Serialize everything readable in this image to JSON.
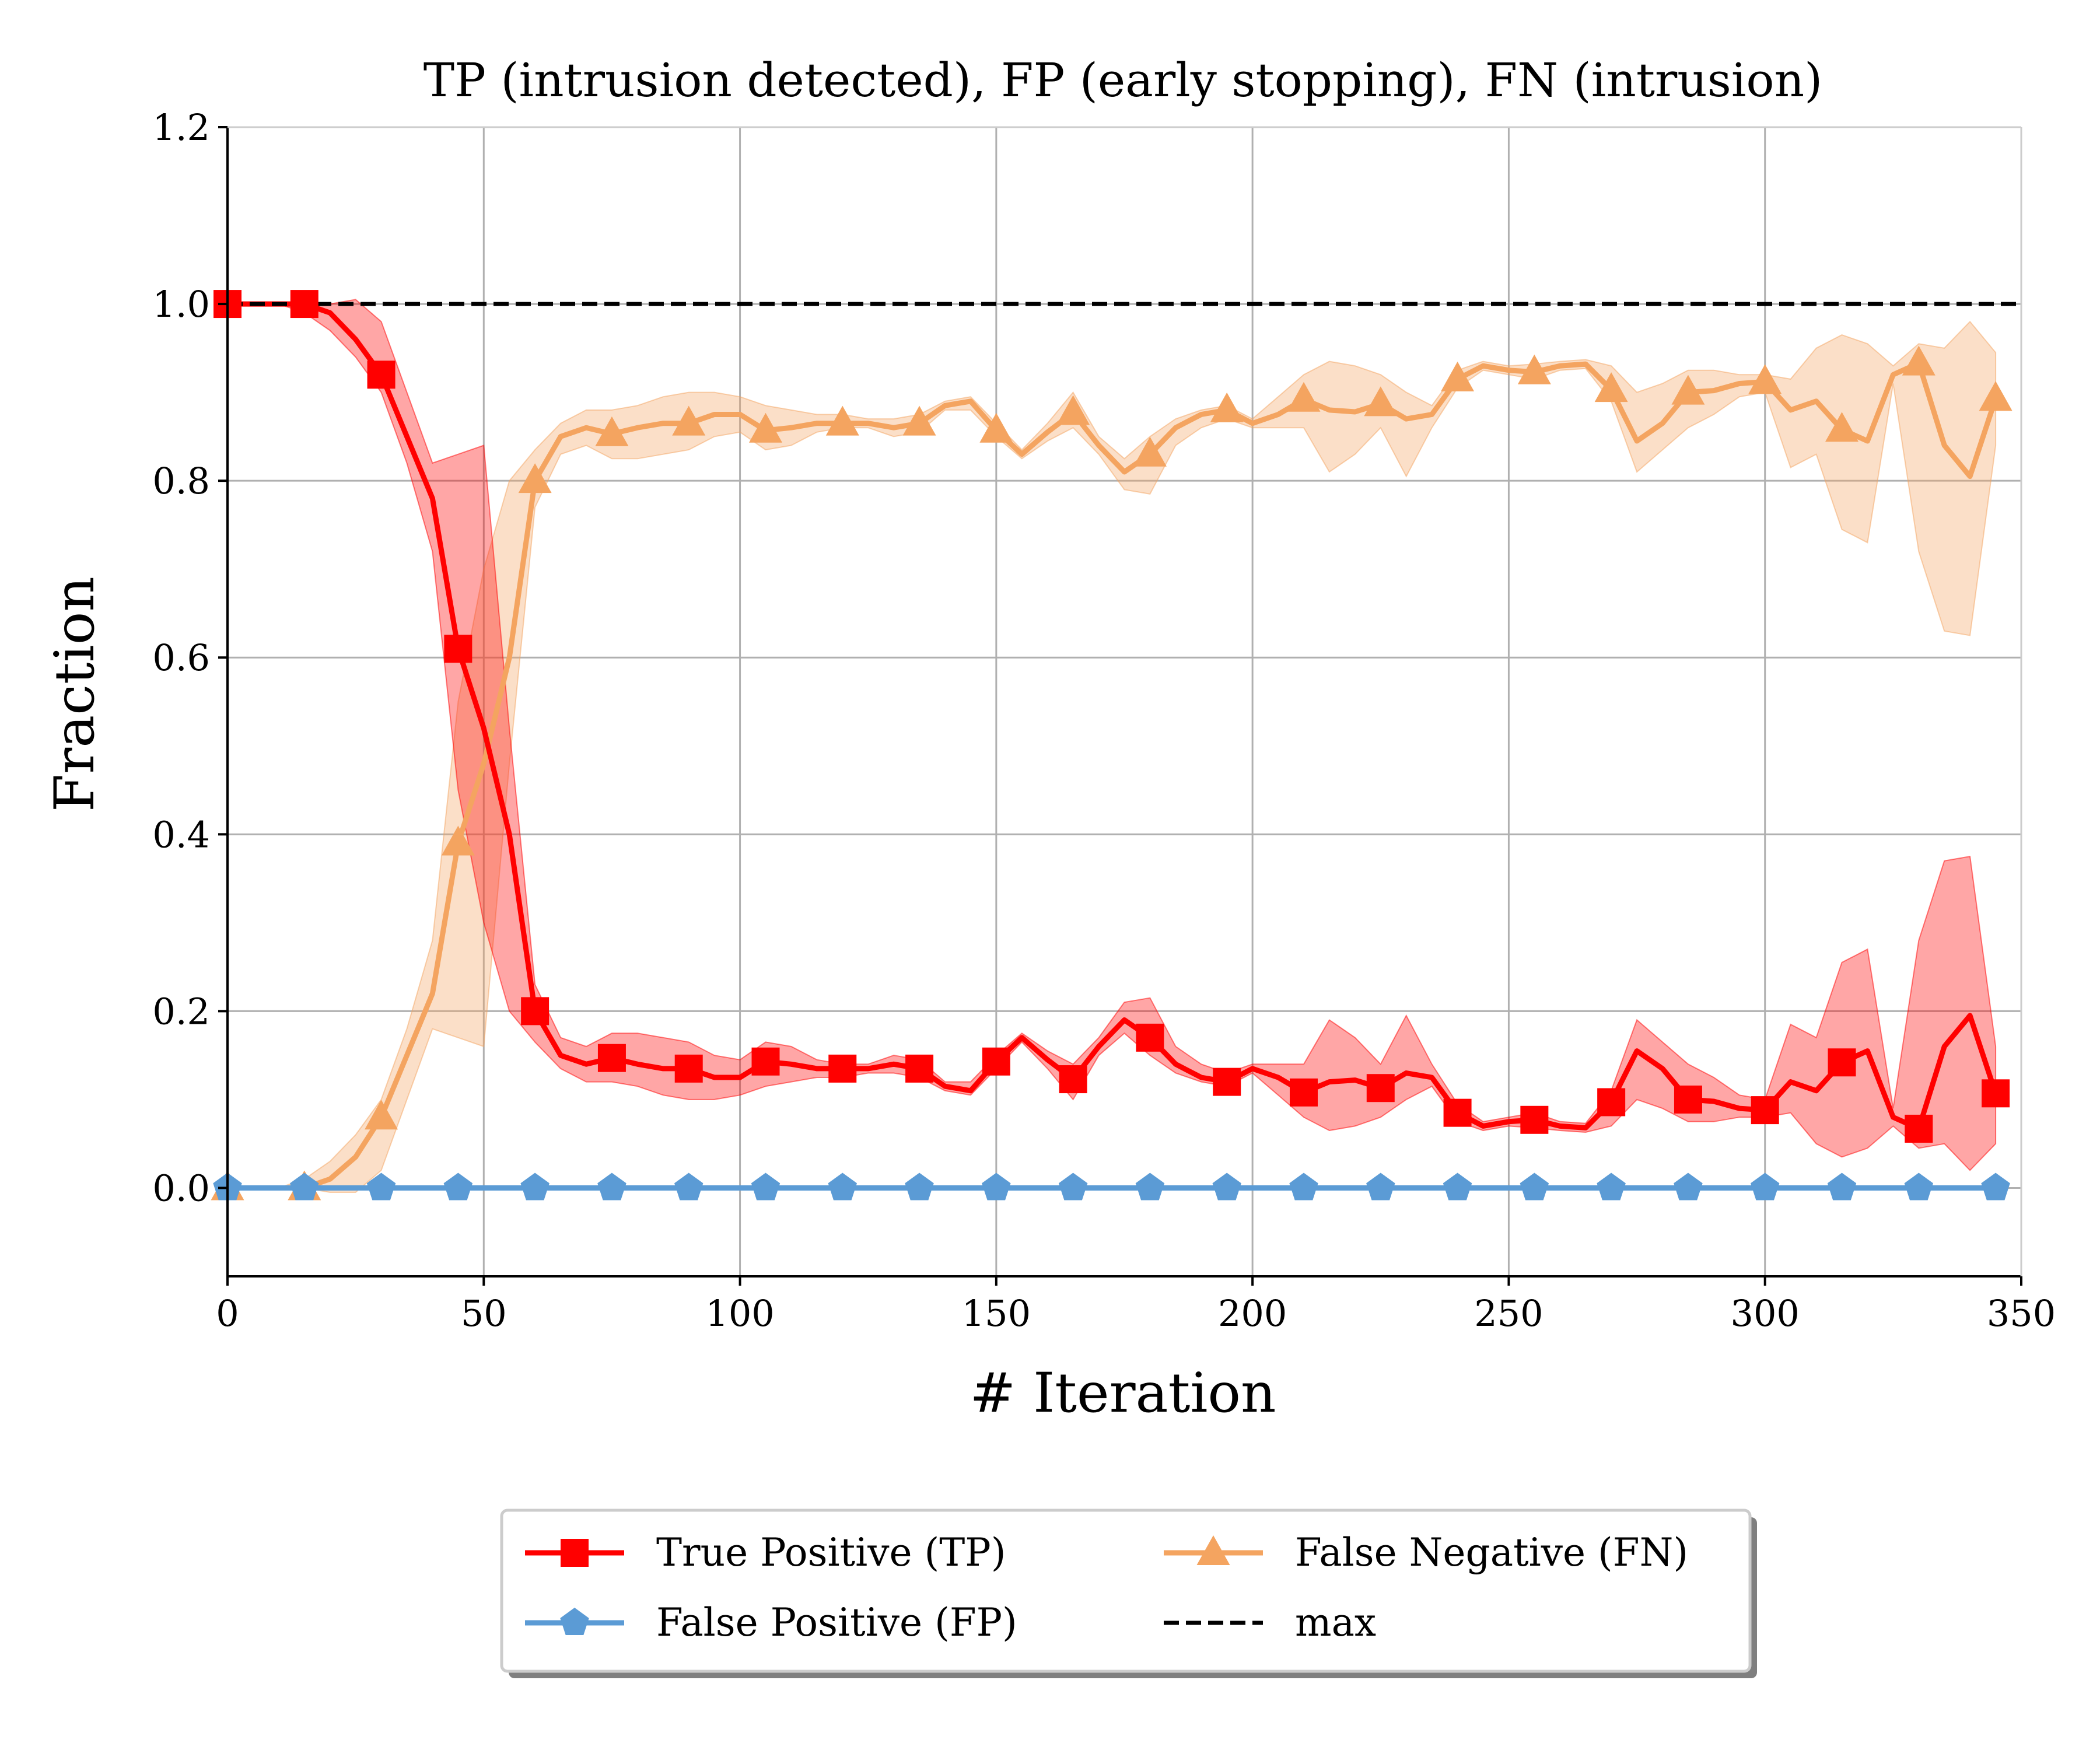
{
  "chart_data": {
    "type": "line",
    "title": "TP (intrusion detected), FP (early stopping), FN (intrusion)",
    "xlabel": "# Iteration",
    "ylabel": "Fraction",
    "xlim": [
      0,
      350
    ],
    "ylim": [
      -0.1,
      1.2
    ],
    "xticks": [
      "0",
      "50",
      "100",
      "150",
      "200",
      "250",
      "300",
      "350"
    ],
    "yticks": [
      "0.0",
      "0.2",
      "0.4",
      "0.6",
      "0.8",
      "1.0",
      "1.2"
    ],
    "grid": true,
    "legend_position": "below",
    "x": [
      0,
      5,
      10,
      15,
      20,
      25,
      30,
      35,
      40,
      45,
      50,
      55,
      60,
      65,
      70,
      75,
      80,
      85,
      90,
      95,
      100,
      105,
      110,
      115,
      120,
      125,
      130,
      135,
      140,
      145,
      150,
      155,
      160,
      165,
      170,
      175,
      180,
      185,
      190,
      195,
      200,
      205,
      210,
      215,
      220,
      225,
      230,
      235,
      240,
      245,
      250,
      255,
      260,
      265,
      270,
      275,
      280,
      285,
      290,
      295,
      300,
      305,
      310,
      315,
      320,
      325,
      330,
      335,
      340,
      345
    ],
    "marker_every": 3,
    "series": [
      {
        "name": "True Positive (TP)",
        "color": "#ff0000",
        "marker": "square",
        "values": [
          1.0,
          1.0,
          1.0,
          1.0,
          0.99,
          0.96,
          0.92,
          0.85,
          0.78,
          0.61,
          0.52,
          0.4,
          0.2,
          0.15,
          0.14,
          0.147,
          0.14,
          0.135,
          0.135,
          0.125,
          0.125,
          0.143,
          0.14,
          0.135,
          0.135,
          0.135,
          0.14,
          0.135,
          0.115,
          0.11,
          0.143,
          0.17,
          0.145,
          0.123,
          0.16,
          0.19,
          0.17,
          0.14,
          0.125,
          0.12,
          0.135,
          0.125,
          0.108,
          0.12,
          0.122,
          0.113,
          0.13,
          0.125,
          0.085,
          0.07,
          0.075,
          0.077,
          0.07,
          0.068,
          0.097,
          0.155,
          0.135,
          0.1,
          0.098,
          0.09,
          0.088,
          0.12,
          0.11,
          0.142,
          0.155,
          0.08,
          0.067,
          0.16,
          0.195,
          0.107
        ],
        "lower": [
          1.0,
          1.0,
          1.0,
          0.99,
          0.97,
          0.94,
          0.9,
          0.82,
          0.72,
          0.45,
          0.3,
          0.2,
          0.165,
          0.135,
          0.12,
          0.12,
          0.115,
          0.105,
          0.1,
          0.1,
          0.105,
          0.115,
          0.12,
          0.125,
          0.125,
          0.13,
          0.13,
          0.125,
          0.11,
          0.105,
          0.135,
          0.165,
          0.135,
          0.1,
          0.15,
          0.175,
          0.15,
          0.13,
          0.12,
          0.115,
          0.13,
          0.105,
          0.08,
          0.065,
          0.07,
          0.08,
          0.1,
          0.115,
          0.075,
          0.065,
          0.07,
          0.068,
          0.065,
          0.063,
          0.07,
          0.1,
          0.09,
          0.075,
          0.075,
          0.08,
          0.08,
          0.085,
          0.05,
          0.035,
          0.045,
          0.07,
          0.045,
          0.05,
          0.02,
          0.05
        ],
        "upper": [
          1.0,
          1.0,
          1.0,
          1.0,
          1.0,
          1.005,
          0.98,
          0.9,
          0.82,
          0.83,
          0.84,
          0.52,
          0.23,
          0.17,
          0.16,
          0.175,
          0.175,
          0.17,
          0.165,
          0.15,
          0.145,
          0.165,
          0.16,
          0.145,
          0.14,
          0.14,
          0.15,
          0.145,
          0.12,
          0.12,
          0.15,
          0.175,
          0.155,
          0.14,
          0.17,
          0.21,
          0.215,
          0.16,
          0.14,
          0.13,
          0.14,
          0.14,
          0.14,
          0.19,
          0.17,
          0.14,
          0.195,
          0.14,
          0.095,
          0.075,
          0.08,
          0.085,
          0.075,
          0.073,
          0.11,
          0.19,
          0.165,
          0.14,
          0.125,
          0.105,
          0.1,
          0.185,
          0.17,
          0.255,
          0.27,
          0.09,
          0.28,
          0.37,
          0.375,
          0.16
        ]
      },
      {
        "name": "False Positive (FP)",
        "color": "#5b9bd5",
        "marker": "pentagon",
        "values": [
          0,
          0,
          0,
          0,
          0,
          0,
          0,
          0,
          0,
          0,
          0,
          0,
          0,
          0,
          0,
          0,
          0,
          0,
          0,
          0,
          0,
          0,
          0,
          0,
          0,
          0,
          0,
          0,
          0,
          0,
          0,
          0,
          0,
          0,
          0,
          0,
          0,
          0,
          0,
          0,
          0,
          0,
          0,
          0,
          0,
          0,
          0,
          0,
          0,
          0,
          0,
          0,
          0,
          0,
          0,
          0,
          0,
          0,
          0,
          0,
          0,
          0,
          0,
          0,
          0,
          0,
          0,
          0,
          0,
          0
        ]
      },
      {
        "name": "False Negative (FN)",
        "color": "#f4a460",
        "marker": "triangle",
        "values": [
          0.0,
          0.0,
          0.0,
          0.0,
          0.01,
          0.035,
          0.08,
          0.15,
          0.22,
          0.39,
          0.48,
          0.6,
          0.8,
          0.85,
          0.86,
          0.853,
          0.86,
          0.865,
          0.865,
          0.875,
          0.875,
          0.857,
          0.86,
          0.865,
          0.865,
          0.865,
          0.86,
          0.865,
          0.885,
          0.89,
          0.857,
          0.83,
          0.855,
          0.877,
          0.84,
          0.81,
          0.83,
          0.86,
          0.875,
          0.88,
          0.865,
          0.875,
          0.892,
          0.88,
          0.878,
          0.887,
          0.87,
          0.875,
          0.915,
          0.93,
          0.925,
          0.923,
          0.93,
          0.932,
          0.903,
          0.845,
          0.865,
          0.9,
          0.902,
          0.91,
          0.912,
          0.88,
          0.89,
          0.858,
          0.845,
          0.92,
          0.933,
          0.84,
          0.805,
          0.893
        ],
        "lower": [
          0.0,
          0.0,
          0.0,
          0.0,
          -0.005,
          -0.005,
          0.02,
          0.1,
          0.18,
          0.17,
          0.16,
          0.48,
          0.77,
          0.83,
          0.84,
          0.825,
          0.825,
          0.83,
          0.835,
          0.85,
          0.855,
          0.835,
          0.84,
          0.855,
          0.86,
          0.86,
          0.85,
          0.855,
          0.88,
          0.88,
          0.85,
          0.825,
          0.845,
          0.86,
          0.83,
          0.79,
          0.785,
          0.84,
          0.86,
          0.87,
          0.86,
          0.86,
          0.86,
          0.81,
          0.83,
          0.86,
          0.805,
          0.86,
          0.905,
          0.925,
          0.92,
          0.915,
          0.925,
          0.927,
          0.89,
          0.81,
          0.835,
          0.86,
          0.875,
          0.895,
          0.9,
          0.815,
          0.83,
          0.745,
          0.73,
          0.91,
          0.72,
          0.63,
          0.625,
          0.84
        ],
        "upper": [
          0.0,
          0.0,
          0.0,
          0.01,
          0.03,
          0.06,
          0.1,
          0.18,
          0.28,
          0.55,
          0.7,
          0.8,
          0.835,
          0.865,
          0.88,
          0.88,
          0.885,
          0.895,
          0.9,
          0.9,
          0.895,
          0.885,
          0.88,
          0.875,
          0.875,
          0.87,
          0.87,
          0.875,
          0.89,
          0.895,
          0.865,
          0.835,
          0.865,
          0.9,
          0.85,
          0.825,
          0.85,
          0.87,
          0.88,
          0.885,
          0.87,
          0.895,
          0.92,
          0.935,
          0.93,
          0.92,
          0.9,
          0.885,
          0.925,
          0.935,
          0.93,
          0.932,
          0.935,
          0.937,
          0.93,
          0.9,
          0.91,
          0.925,
          0.925,
          0.92,
          0.92,
          0.915,
          0.95,
          0.965,
          0.955,
          0.93,
          0.955,
          0.95,
          0.98,
          0.945
        ]
      },
      {
        "name": "max",
        "color": "#000000",
        "style": "dashed",
        "values": [
          1.0,
          1.0
        ],
        "x": [
          0,
          350
        ]
      }
    ],
    "legend": [
      {
        "label": "True Positive (TP)",
        "series": 0
      },
      {
        "label": "False Positive (FP)",
        "series": 1
      },
      {
        "label": "False Negative (FN)",
        "series": 2
      },
      {
        "label": "max",
        "series": 3
      }
    ]
  }
}
